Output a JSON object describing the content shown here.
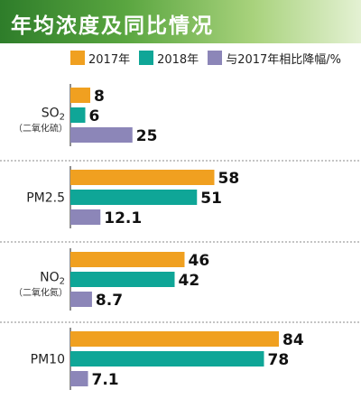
{
  "header": {
    "title": "年均浓度及同比情况"
  },
  "colors": {
    "y2017": "#f0a020",
    "y2018": "#0fa697",
    "decline": "#8c86b8"
  },
  "chart_data": {
    "type": "bar",
    "orientation": "horizontal",
    "title": "年均浓度及同比情况",
    "categories": [
      {
        "name": "SO2",
        "sub": "（二氧化硫）"
      },
      {
        "name": "PM2.5",
        "sub": ""
      },
      {
        "name": "NO2",
        "sub": "（二氧化氮）"
      },
      {
        "name": "PM10",
        "sub": ""
      }
    ],
    "series": [
      {
        "name": "2017年",
        "values": [
          8,
          58,
          46,
          84
        ],
        "labels": [
          "8",
          "58",
          "46",
          "84"
        ]
      },
      {
        "name": "2018年",
        "values": [
          6,
          51,
          42,
          78
        ],
        "labels": [
          "6",
          "51",
          "42",
          "78"
        ]
      },
      {
        "name": "与2017年相比降幅/%",
        "values": [
          25,
          12.1,
          8.7,
          7.1
        ],
        "labels": [
          "25",
          "12.1",
          "8.7",
          "7.1"
        ]
      }
    ],
    "legend": "top"
  }
}
